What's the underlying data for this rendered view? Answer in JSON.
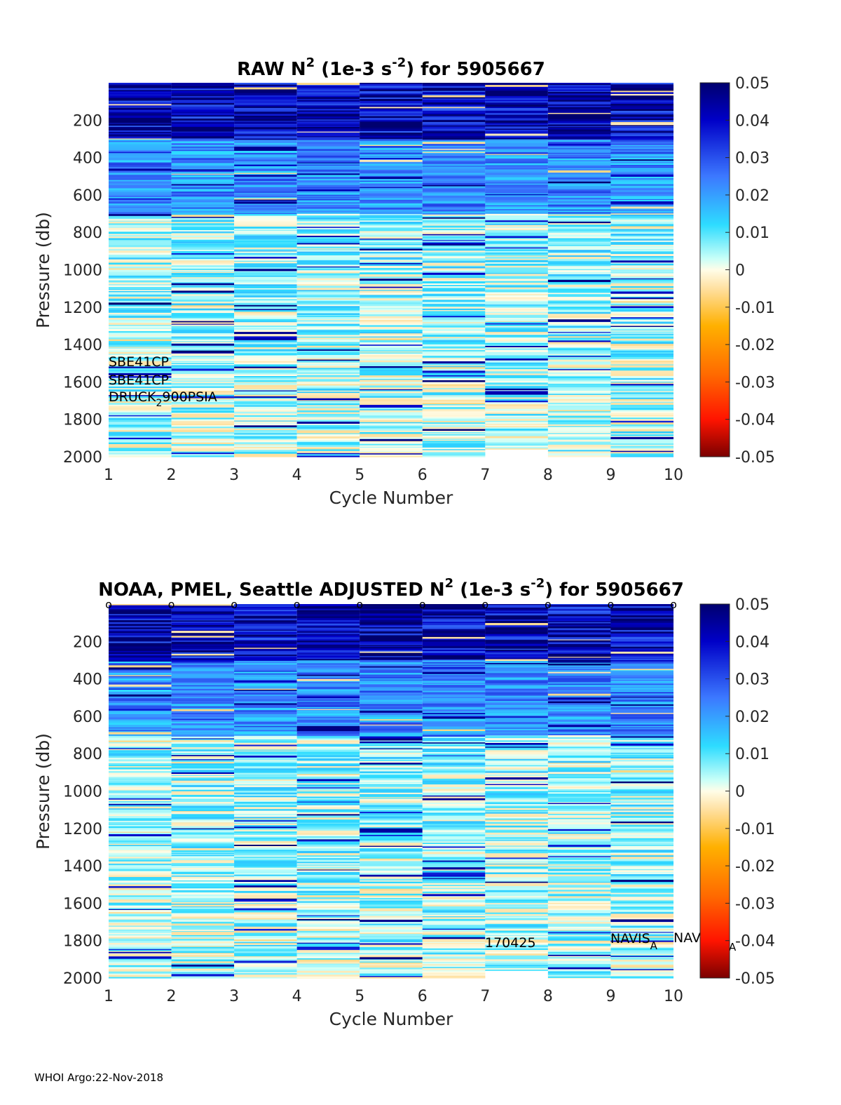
{
  "chart_data": [
    {
      "type": "heatmap",
      "title_prefix": "RAW N",
      "title_sup": "2",
      "title_mid": " (1e-3 s",
      "title_sup2": "-2",
      "title_suffix": ") for 5905667",
      "xlabel": "Cycle Number",
      "ylabel": "Pressure (db)",
      "x_ticks": [
        "1",
        "2",
        "3",
        "4",
        "5",
        "6",
        "7",
        "8",
        "9",
        "10"
      ],
      "y_ticks": [
        "200",
        "400",
        "600",
        "800",
        "1000",
        "1200",
        "1400",
        "1600",
        "1800",
        "2000"
      ],
      "xlim": [
        1,
        10
      ],
      "ylim": [
        0,
        2000
      ],
      "columns": [
        1,
        2,
        3,
        4,
        5,
        6,
        7,
        8,
        9
      ],
      "column_max_pressure": [
        2000,
        2000,
        2000,
        2000,
        2000,
        2000,
        1960,
        2000,
        2000
      ],
      "colorbar": {
        "min": -0.05,
        "max": 0.05,
        "tick_labels": [
          "0.05",
          "0.04",
          "0.03",
          "0.02",
          "0.01",
          "0",
          "-0.01",
          "-0.02",
          "-0.03",
          "-0.04",
          "-0.05"
        ]
      },
      "annotations": [
        "SBE41CP",
        "SBE41CP"
      ],
      "annotation_druck_base": "DRUCK",
      "annotation_druck_sub": "2",
      "annotation_druck_tail": "900PSIA"
    },
    {
      "type": "heatmap",
      "title_prefix": "NOAA, PMEL, Seattle  ADJUSTED N",
      "title_sup": "2",
      "title_mid": " (1e-3 s",
      "title_sup2": "-2",
      "title_suffix": ") for 5905667",
      "xlabel": "Cycle Number",
      "ylabel": "Pressure (db)",
      "x_ticks": [
        "1",
        "2",
        "3",
        "4",
        "5",
        "6",
        "7",
        "8",
        "9",
        "10"
      ],
      "y_ticks": [
        "200",
        "400",
        "600",
        "800",
        "1000",
        "1200",
        "1400",
        "1600",
        "1800",
        "2000"
      ],
      "xlim": [
        1,
        10
      ],
      "ylim": [
        0,
        2000
      ],
      "columns": [
        1,
        2,
        3,
        4,
        5,
        6,
        7,
        8,
        9
      ],
      "column_max_pressure": [
        2000,
        2000,
        2000,
        2000,
        2000,
        2000,
        1960,
        2000,
        2000
      ],
      "qc_markers": [
        "o",
        "o",
        "o",
        "o",
        "o",
        "o",
        "o",
        "o",
        "o",
        "o"
      ],
      "colorbar": {
        "min": -0.05,
        "max": 0.05,
        "tick_labels": [
          "0.05",
          "0.04",
          "0.03",
          "0.02",
          "0.01",
          "0",
          "-0.01",
          "-0.02",
          "-0.03",
          "-0.04",
          "-0.05"
        ]
      },
      "annotation_date": "170425",
      "annotation_navis_base": "NAVIS",
      "annotation_navis_sub": "A",
      "annotation_navis2_base": "NAV",
      "annotation_navis2_sub": "A"
    }
  ],
  "footer": "WHOI Argo:22-Nov-2018"
}
